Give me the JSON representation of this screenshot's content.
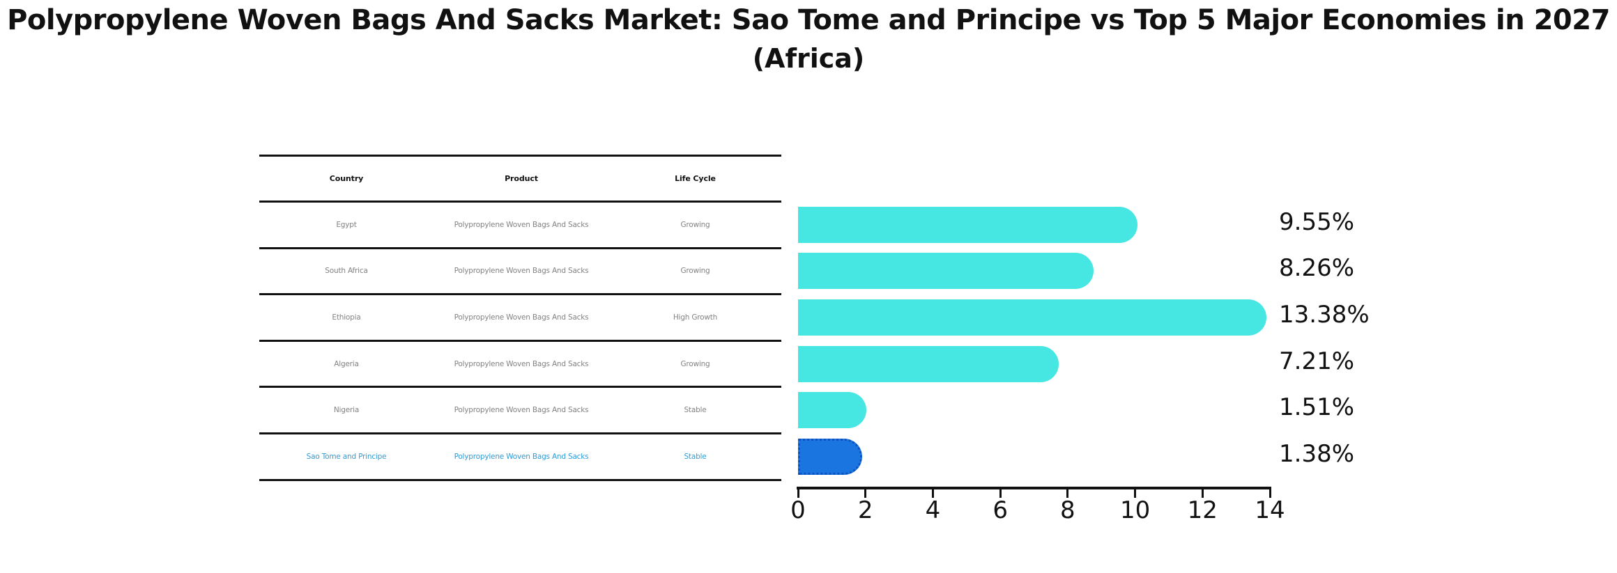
{
  "title": {
    "line1": "Polypropylene Woven Bags And Sacks Market: Sao Tome and Principe vs Top 5 Major Economies in 2027",
    "line2": "(Africa)"
  },
  "table": {
    "columns": [
      "Country",
      "Product",
      "Life Cycle"
    ],
    "rows": [
      {
        "country": "Egypt",
        "product": "Polypropylene Woven Bags And Sacks",
        "life_cycle": "Growing",
        "highlight": false
      },
      {
        "country": "South Africa",
        "product": "Polypropylene Woven Bags And Sacks",
        "life_cycle": "Growing",
        "highlight": false
      },
      {
        "country": "Ethiopia",
        "product": "Polypropylene Woven Bags And Sacks",
        "life_cycle": "High Growth",
        "highlight": false
      },
      {
        "country": "Algeria",
        "product": "Polypropylene Woven Bags And Sacks",
        "life_cycle": "Growing",
        "highlight": false
      },
      {
        "country": "Nigeria",
        "product": "Polypropylene Woven Bags And Sacks",
        "life_cycle": "Stable",
        "highlight": false
      },
      {
        "country": "Sao Tome and Principe",
        "product": "Polypropylene Woven Bags And Sacks",
        "life_cycle": "Stable",
        "highlight": true
      }
    ]
  },
  "chart_data": {
    "type": "bar",
    "orientation": "horizontal",
    "categories": [
      "Egypt",
      "South Africa",
      "Ethiopia",
      "Algeria",
      "Nigeria",
      "Sao Tome and Principe"
    ],
    "values": [
      9.55,
      8.26,
      13.38,
      7.21,
      1.51,
      1.38
    ],
    "value_labels": [
      "9.55%",
      "8.26%",
      "13.38%",
      "7.21%",
      "1.51%",
      "1.38%"
    ],
    "title": "Polypropylene Woven Bags And Sacks Market: Sao Tome and Principe vs Top 5 Major Economies in 2027 (Africa)",
    "xlabel": "",
    "ylabel": "",
    "xlim": [
      0,
      14
    ],
    "xticks": [
      0,
      2,
      4,
      6,
      8,
      10,
      12,
      14
    ],
    "grid": false,
    "legend": false,
    "highlight_index": 5
  },
  "colors": {
    "bar": "#46E6E2",
    "highlight_bar": "#1B75E0",
    "highlight_border": "#0D52BF",
    "highlight_text": "#2E9BD6",
    "table_text": "#828282",
    "axis": "#111111"
  }
}
